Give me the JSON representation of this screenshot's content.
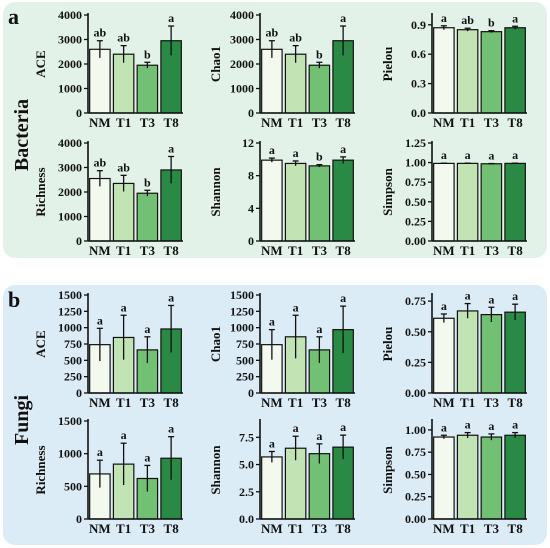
{
  "sections": [
    {
      "letter": "a",
      "group": "Bacteria",
      "bg": "#e3f2e8"
    },
    {
      "letter": "b",
      "group": "Fungi",
      "bg": "#dcecf6"
    }
  ],
  "colors": {
    "NM": "#f3f9ee",
    "T1": "#c2e4b4",
    "T3": "#72c073",
    "T8": "#2a8a45"
  },
  "chart_data": [
    {
      "type": "bar",
      "section": "Bacteria",
      "ylabel": "ACE",
      "categories": [
        "NM",
        "T1",
        "T3",
        "T8"
      ],
      "values": [
        2600,
        2400,
        1950,
        2950
      ],
      "errors": [
        350,
        350,
        120,
        600
      ],
      "labels": [
        "ab",
        "ab",
        "b",
        "a"
      ],
      "ylim": [
        0,
        4000
      ],
      "yticks": [
        "0",
        "1000",
        "2000",
        "3000",
        "4000"
      ]
    },
    {
      "type": "bar",
      "section": "Bacteria",
      "ylabel": "Chao1",
      "categories": [
        "NM",
        "T1",
        "T3",
        "T8"
      ],
      "values": [
        2600,
        2400,
        1950,
        2950
      ],
      "errors": [
        350,
        350,
        120,
        600
      ],
      "labels": [
        "ab",
        "ab",
        "b",
        "a"
      ],
      "ylim": [
        0,
        4000
      ],
      "yticks": [
        "0",
        "1000",
        "2000",
        "3000",
        "4000"
      ]
    },
    {
      "type": "bar",
      "section": "Bacteria",
      "ylabel": "Pielou",
      "categories": [
        "NM",
        "T1",
        "T3",
        "T8"
      ],
      "values": [
        0.87,
        0.85,
        0.83,
        0.87
      ],
      "errors": [
        0.02,
        0.015,
        0.01,
        0.015
      ],
      "labels": [
        "a",
        "ab",
        "b",
        "a"
      ],
      "ylim": [
        0,
        1.0
      ],
      "yticks": [
        "0.0",
        "0.3",
        "0.6",
        "0.9"
      ],
      "ytickvals": [
        0,
        0.3,
        0.6,
        0.9
      ]
    },
    {
      "type": "bar",
      "section": "Bacteria",
      "ylabel": "Richness",
      "categories": [
        "NM",
        "T1",
        "T3",
        "T8"
      ],
      "values": [
        2550,
        2350,
        1950,
        2900
      ],
      "errors": [
        320,
        330,
        120,
        550
      ],
      "labels": [
        "ab",
        "ab",
        "b",
        "a"
      ],
      "ylim": [
        0,
        4000
      ],
      "yticks": [
        "0",
        "1000",
        "2000",
        "3000",
        "4000"
      ]
    },
    {
      "type": "bar",
      "section": "Bacteria",
      "ylabel": "Shannon",
      "categories": [
        "NM",
        "T1",
        "T3",
        "T8"
      ],
      "values": [
        9.9,
        9.5,
        9.2,
        9.9
      ],
      "errors": [
        0.25,
        0.3,
        0.15,
        0.4
      ],
      "labels": [
        "a",
        "a",
        "b",
        "a"
      ],
      "ylim": [
        0,
        12
      ],
      "yticks": [
        "0",
        "4",
        "8",
        "12"
      ]
    },
    {
      "type": "bar",
      "section": "Bacteria",
      "ylabel": "Simpson",
      "categories": [
        "NM",
        "T1",
        "T3",
        "T8"
      ],
      "values": [
        0.99,
        0.99,
        0.985,
        0.99
      ],
      "errors": [
        0.003,
        0.003,
        0.003,
        0.003
      ],
      "labels": [
        "a",
        "a",
        "a",
        "a"
      ],
      "ylim": [
        0,
        1.25
      ],
      "yticks": [
        "0.00",
        "0.25",
        "0.50",
        "0.75",
        "1.00",
        "1.25"
      ]
    },
    {
      "type": "bar",
      "section": "Fungi",
      "ylabel": "ACE",
      "categories": [
        "NM",
        "T1",
        "T3",
        "T8"
      ],
      "values": [
        740,
        850,
        660,
        980
      ],
      "errors": [
        250,
        340,
        200,
        360
      ],
      "labels": [
        "a",
        "a",
        "a",
        "a"
      ],
      "ylim": [
        0,
        1500
      ],
      "yticks": [
        "0",
        "250",
        "500",
        "750",
        "1000",
        "1250",
        "1500"
      ]
    },
    {
      "type": "bar",
      "section": "Fungi",
      "ylabel": "Chao1",
      "categories": [
        "NM",
        "T1",
        "T3",
        "T8"
      ],
      "values": [
        740,
        860,
        660,
        970
      ],
      "errors": [
        230,
        330,
        200,
        360
      ],
      "labels": [
        "a",
        "a",
        "a",
        "a"
      ],
      "ylim": [
        0,
        1500
      ],
      "yticks": [
        "0",
        "250",
        "500",
        "750",
        "1000",
        "1250",
        "1500"
      ]
    },
    {
      "type": "bar",
      "section": "Fungi",
      "ylabel": "Pielou",
      "categories": [
        "NM",
        "T1",
        "T3",
        "T8"
      ],
      "values": [
        0.61,
        0.67,
        0.64,
        0.66
      ],
      "errors": [
        0.035,
        0.06,
        0.06,
        0.065
      ],
      "labels": [
        "a",
        "a",
        "a",
        "a"
      ],
      "ylim": [
        0,
        0.8
      ],
      "yticks": [
        "0.00",
        "0.25",
        "0.50",
        "0.75"
      ],
      "ytickvals": [
        0,
        0.25,
        0.5,
        0.75
      ]
    },
    {
      "type": "bar",
      "section": "Fungi",
      "ylabel": "Richness",
      "categories": [
        "NM",
        "T1",
        "T3",
        "T8"
      ],
      "values": [
        690,
        840,
        620,
        930
      ],
      "errors": [
        210,
        320,
        200,
        330
      ],
      "labels": [
        "a",
        "a",
        "a",
        "a"
      ],
      "ylim": [
        0,
        1500
      ],
      "yticks": [
        "0",
        "500",
        "1000",
        "1500"
      ]
    },
    {
      "type": "bar",
      "section": "Fungi",
      "ylabel": "Shannon",
      "categories": [
        "NM",
        "T1",
        "T3",
        "T8"
      ],
      "values": [
        5.7,
        6.5,
        6.0,
        6.6
      ],
      "errors": [
        0.5,
        1.1,
        0.9,
        1.1
      ],
      "labels": [
        "a",
        "a",
        "a",
        "a"
      ],
      "ylim": [
        0,
        9.0
      ],
      "yticks": [
        "0.0",
        "2.5",
        "5.0",
        "7.5"
      ],
      "ytickvals": [
        0,
        2.5,
        5.0,
        7.5
      ]
    },
    {
      "type": "bar",
      "section": "Fungi",
      "ylabel": "Simpson",
      "categories": [
        "NM",
        "T1",
        "T3",
        "T8"
      ],
      "values": [
        0.92,
        0.94,
        0.92,
        0.94
      ],
      "errors": [
        0.02,
        0.03,
        0.035,
        0.03
      ],
      "labels": [
        "a",
        "a",
        "a",
        "a"
      ],
      "ylim": [
        0,
        1.1
      ],
      "yticks": [
        "0.00",
        "0.25",
        "0.50",
        "0.75",
        "1.00"
      ],
      "ytickvals": [
        0,
        0.25,
        0.5,
        0.75,
        1.0
      ]
    }
  ]
}
